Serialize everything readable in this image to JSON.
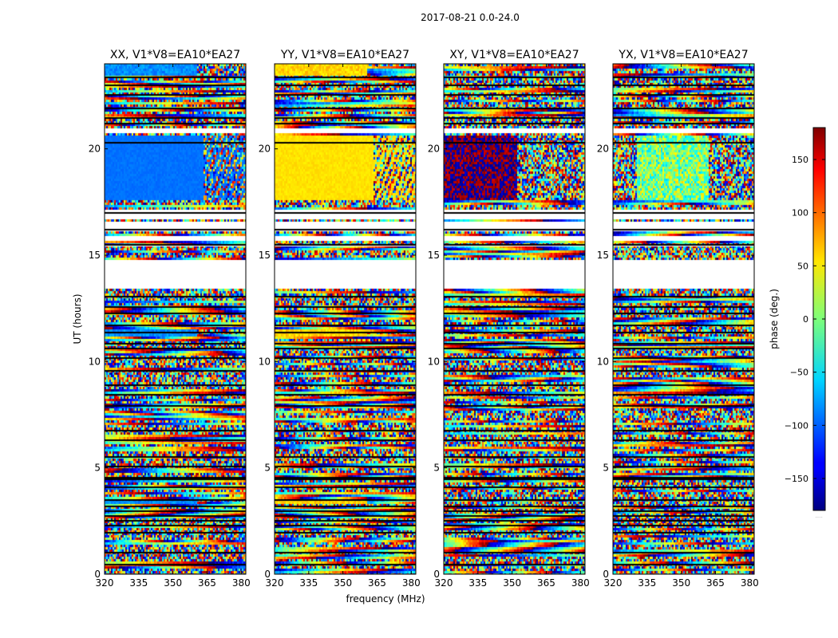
{
  "chart_data": {
    "type": "heatmap",
    "suptitle": "2017-08-21 0.0-24.0",
    "xlabel": "frequency (MHz)",
    "ylabel": "UT (hours)",
    "xlim": [
      320,
      382
    ],
    "ylim": [
      0,
      24
    ],
    "xticks": [
      320,
      335,
      350,
      365,
      380
    ],
    "yticks": [
      0,
      5,
      10,
      15,
      20
    ],
    "panels": [
      {
        "title": "XX, V1*V8=EA10*EA27",
        "mode": "xx"
      },
      {
        "title": "YY, V1*V8=EA10*EA27",
        "mode": "yy"
      },
      {
        "title": "XY, V1*V8=EA10*EA27",
        "mode": "xy"
      },
      {
        "title": "YX, V1*V8=EA10*EA27",
        "mode": "yx"
      }
    ],
    "colorbar": {
      "label": "phase (deg.)",
      "range": [
        -180,
        180
      ],
      "ticks": [
        -150,
        -100,
        -50,
        0,
        50,
        100,
        150
      ],
      "tick_labels": [
        "−150",
        "−100",
        "−50",
        "0",
        "50",
        "100",
        "150"
      ],
      "colormap": "jet"
    },
    "flagged_ut_ranges_hours": [
      [
        13.45,
        14.85
      ],
      [
        15.7,
        16.0
      ],
      [
        16.3,
        16.65
      ],
      [
        16.8,
        17.15
      ],
      [
        20.75,
        21.0
      ]
    ],
    "black_gap_ut_hours": [
      0.45,
      1.0,
      1.95,
      2.3,
      2.5,
      2.75,
      2.95,
      3.2,
      3.5,
      4.1,
      4.45,
      4.55,
      5.05,
      5.5,
      6.3,
      6.75,
      7.9,
      8.45,
      8.9,
      9.55,
      10.15,
      10.6,
      10.85,
      11.35,
      11.7,
      12.25,
      12.55,
      13.05,
      15.5,
      16.2,
      17.0,
      20.3,
      21.2,
      21.45,
      21.9,
      22.55,
      23.0,
      23.35
    ]
  }
}
